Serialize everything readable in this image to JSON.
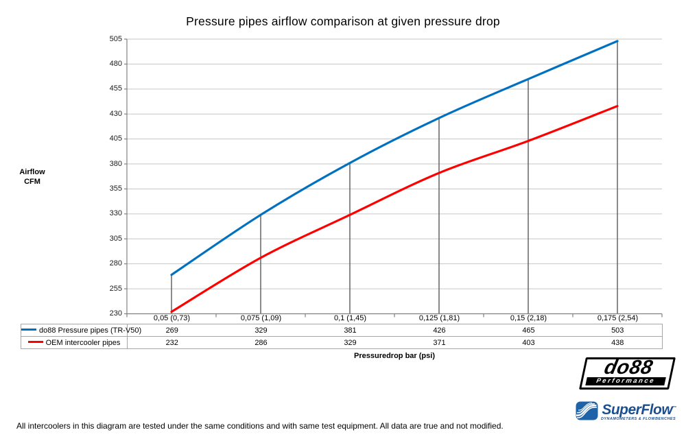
{
  "chart_data": {
    "type": "line",
    "title": "Pressure pipes airflow comparison at given pressure drop",
    "categories": [
      "0,05 (0,73)",
      "0,075 (1,09)",
      "0,1 (1,45)",
      "0,125 (1,81)",
      "0,15 (2,18)",
      "0,175 (2,54)"
    ],
    "series": [
      {
        "name": "do88 Pressure pipes (TR-V50)",
        "color": "#0070C0",
        "values": [
          269,
          329,
          381,
          426,
          465,
          503
        ]
      },
      {
        "name": "OEM intercooler pipes",
        "color": "#FF0000",
        "values": [
          232,
          286,
          329,
          371,
          403,
          438
        ]
      }
    ],
    "xlabel": "Pressuredrop bar (psi)",
    "ylabel": "Airflow CFM",
    "ylabel_lines": [
      "Airflow",
      "CFM"
    ],
    "ylim": [
      230,
      505
    ],
    "ytick_step": 25,
    "grid": true,
    "smooth": true,
    "drop_lines": true,
    "legend_position": "table-left",
    "line_width": 3.2
  },
  "footnote": "All intercoolers in this diagram are tested under the same conditions and with same test equipment. All data are true and not modified.",
  "logos": {
    "do88": {
      "name": "do88",
      "subtext": "Performance"
    },
    "superflow": {
      "name": "SuperFlow",
      "mark": "™",
      "subtext": "DYNAMOMETERS & FLOWBENCHES"
    }
  },
  "colors": {
    "grid": "#C6C6C6",
    "axis": "#808080",
    "drop_line": "#595959",
    "table_border": "#A6A6A6",
    "superflow_icon": "#1E63A8",
    "superflow_text": "#1B4F8F"
  }
}
